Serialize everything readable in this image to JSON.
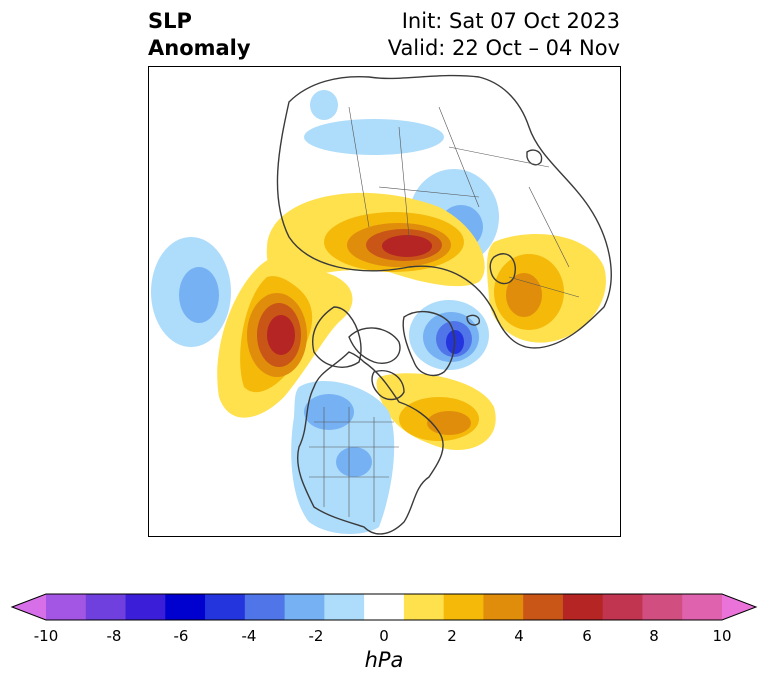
{
  "title": {
    "line1": "SLP",
    "line2": "Anomaly",
    "init": "Init: Sat 07 Oct 2023",
    "valid": "Valid: 22 Oct – 04 Nov"
  },
  "colorbar": {
    "unit": "hPa",
    "tick_labels": [
      "-10",
      "-8",
      "-6",
      "-4",
      "-2",
      "0",
      "2",
      "4",
      "6",
      "8",
      "10"
    ],
    "colors": [
      "#d770e8",
      "#a355e3",
      "#7040df",
      "#3b1ed8",
      "#0000cf",
      "#2435dd",
      "#4f75e8",
      "#76b1f4",
      "#aedcfb",
      "#ffffff",
      "#ffe14d",
      "#f5b90a",
      "#e08d0c",
      "#c95617",
      "#b42523",
      "#c23550",
      "#d04f80",
      "#de62ad",
      "#ea73d9"
    ]
  },
  "colors": {
    "neg_light": "#aedcfb",
    "neg_mid": "#76b1f4",
    "neg_strong": "#4f75e8",
    "neg_core": "#2435dd",
    "pos_light": "#ffe14d",
    "pos_mid": "#f5b90a",
    "pos_strong": "#e08d0c",
    "pos_deep": "#c95617",
    "pos_core": "#b42523",
    "coast": "#3a3a3a"
  }
}
